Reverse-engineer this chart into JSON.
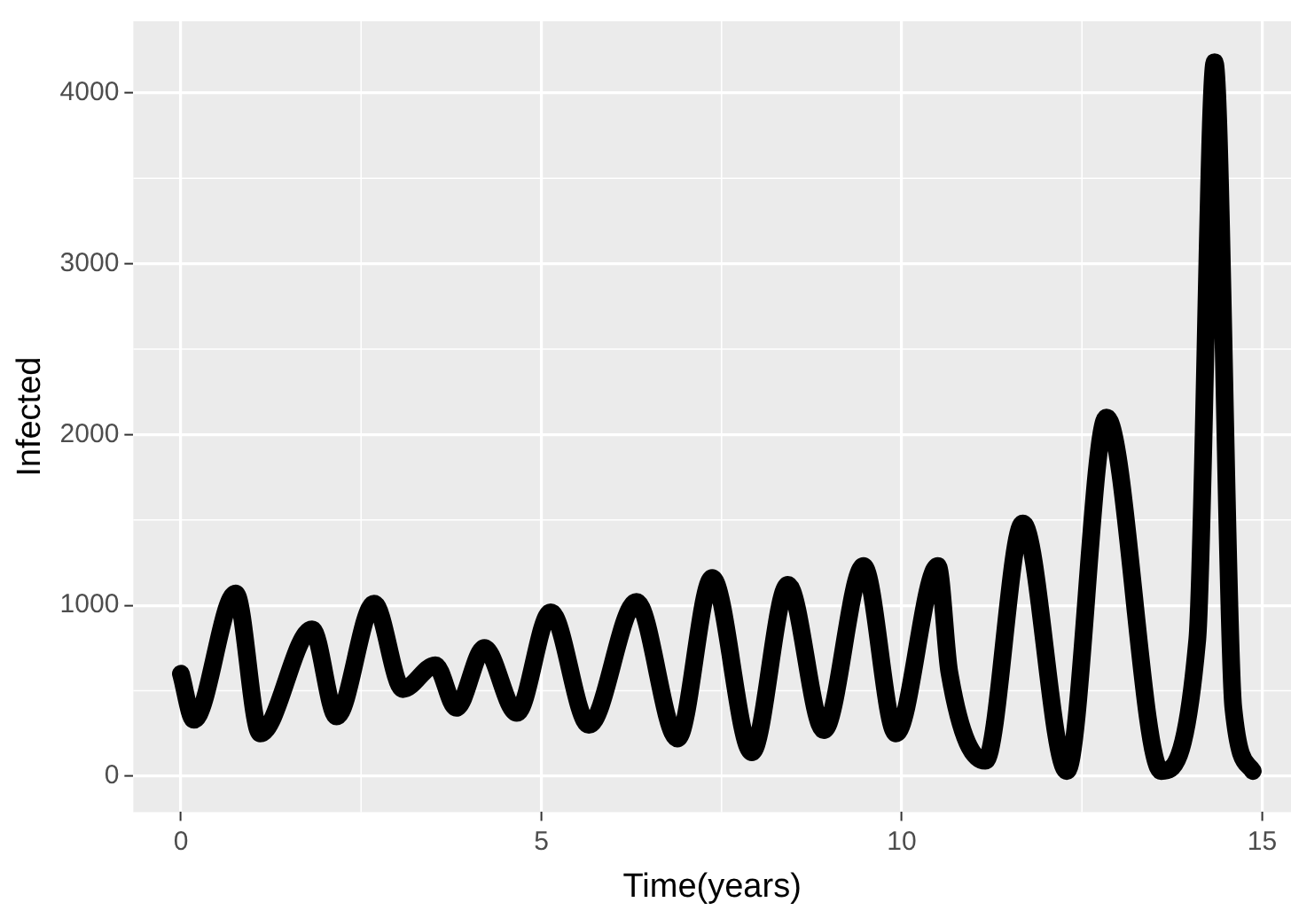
{
  "chart_data": {
    "type": "line",
    "xlabel": "Time(years)",
    "ylabel": "Infected",
    "x": [
      0,
      0.18,
      0.76,
      1.1,
      1.82,
      2.16,
      2.68,
      3.08,
      3.53,
      3.82,
      4.21,
      4.66,
      5.13,
      5.66,
      6.32,
      6.89,
      7.37,
      7.92,
      8.42,
      8.92,
      9.47,
      9.92,
      10.5,
      10.66,
      11.16,
      11.68,
      12.29,
      12.84,
      13.6,
      14.1,
      14.34,
      14.6,
      14.87
    ],
    "series": [
      {
        "color": "#000000",
        "values": [
          600,
          330,
          1070,
          250,
          860,
          350,
          1010,
          510,
          650,
          400,
          750,
          370,
          960,
          300,
          1020,
          220,
          1160,
          140,
          1120,
          270,
          1230,
          250,
          1230,
          610,
          90,
          1480,
          30,
          2100,
          30,
          800,
          4180,
          400,
          30
        ]
      }
    ],
    "xlim": [
      -0.66,
      15.4
    ],
    "ylim": [
      -210,
      4420
    ],
    "xticks": [
      0,
      5,
      10,
      15
    ],
    "yticks": [
      0,
      1000,
      2000,
      3000,
      4000
    ],
    "grid": true,
    "legend": false,
    "marker": "none",
    "line_style": "solid"
  }
}
